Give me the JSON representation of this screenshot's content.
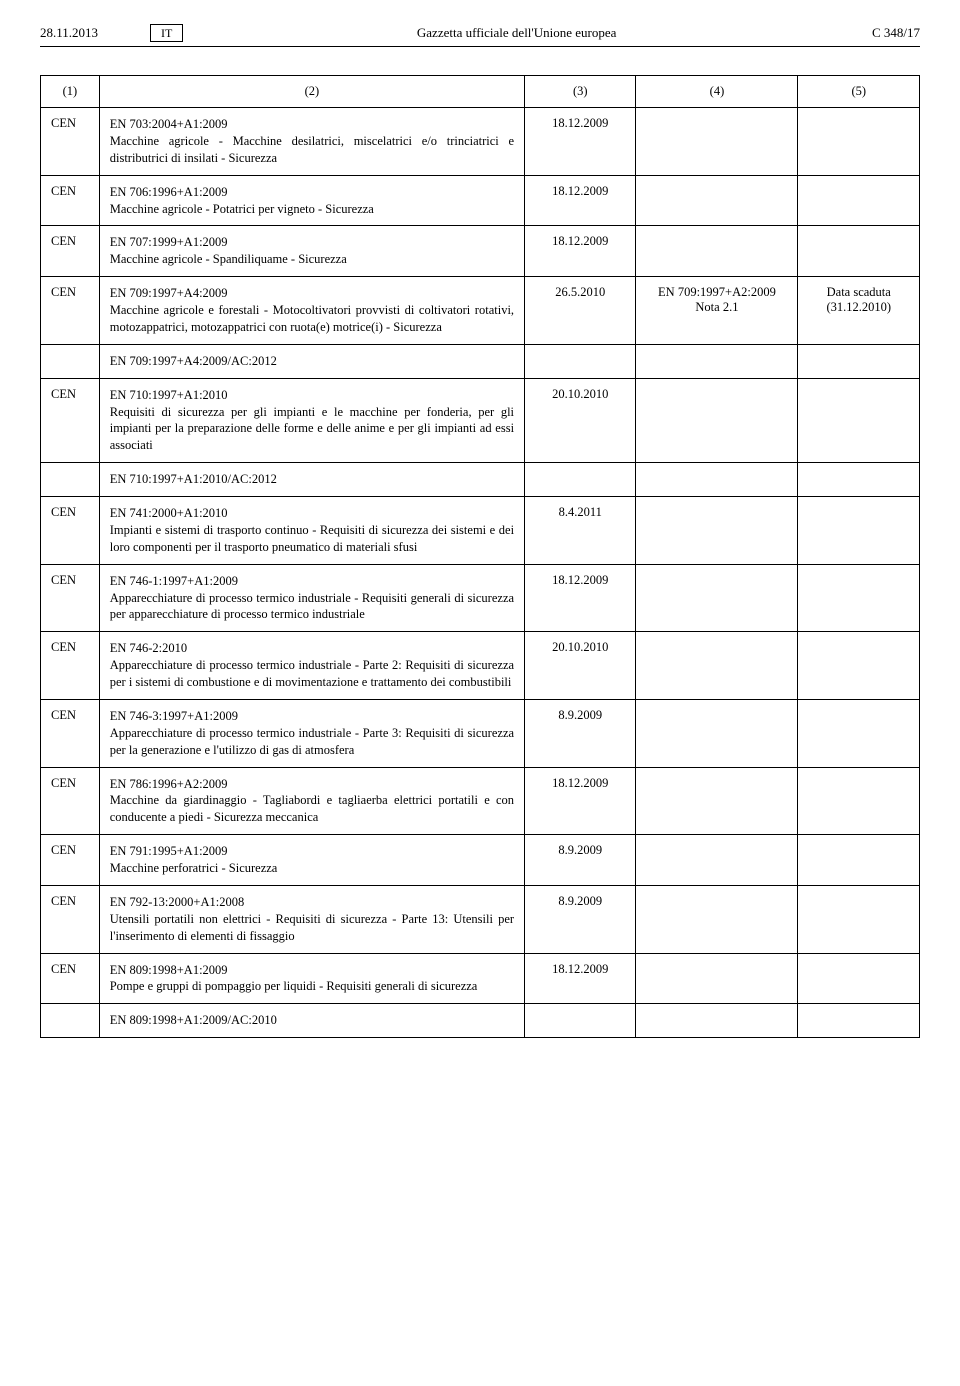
{
  "header": {
    "date": "28.11.2013",
    "lang": "IT",
    "title": "Gazzetta ufficiale dell'Unione europea",
    "page": "C 348/17"
  },
  "columns": [
    "(1)",
    "(2)",
    "(3)",
    "(4)",
    "(5)"
  ],
  "rows": [
    {
      "org": "CEN",
      "std": "EN 703:2004+A1:2009",
      "desc": "Macchine agricole - Macchine desilatrici, miscelatrici e/o trinciatrici e distributrici di insilati - Sicurezza",
      "c3": "18.12.2009",
      "c4": "",
      "c5": ""
    },
    {
      "org": "CEN",
      "std": "EN 706:1996+A1:2009",
      "desc": "Macchine agricole - Potatrici per vigneto - Sicurezza",
      "c3": "18.12.2009",
      "c4": "",
      "c5": ""
    },
    {
      "org": "CEN",
      "std": "EN 707:1999+A1:2009",
      "desc": "Macchine agricole - Spandiliquame - Sicurezza",
      "c3": "18.12.2009",
      "c4": "",
      "c5": ""
    },
    {
      "org": "CEN",
      "std": "EN 709:1997+A4:2009",
      "desc": "Macchine agricole e forestali - Motocoltivatori provvisti di coltivatori rotativi, motozappatrici, motozappatrici con ruota(e) motrice(i) - Sicurezza",
      "c3": "26.5.2010",
      "c4": "EN 709:1997+A2:2009\nNota 2.1",
      "c5": "Data scaduta\n(31.12.2010)",
      "sub": {
        "std": "EN 709:1997+A4:2009/AC:2012"
      }
    },
    {
      "org": "CEN",
      "std": "EN 710:1997+A1:2010",
      "desc": "Requisiti di sicurezza per gli impianti e le macchine per fonderia, per gli impianti per la preparazione delle forme e delle anime e per gli impianti ad essi associati",
      "c3": "20.10.2010",
      "c4": "",
      "c5": "",
      "sub": {
        "std": "EN 710:1997+A1:2010/AC:2012"
      }
    },
    {
      "org": "CEN",
      "std": "EN 741:2000+A1:2010",
      "desc": "Impianti e sistemi di trasporto continuo - Requisiti di sicurezza dei sistemi e dei loro componenti per il trasporto pneumatico di materiali sfusi",
      "c3": "8.4.2011",
      "c4": "",
      "c5": ""
    },
    {
      "org": "CEN",
      "std": "EN 746-1:1997+A1:2009",
      "desc": "Apparecchiature di processo termico industriale - Requisiti generali di sicurezza per apparecchiature di processo termico industriale",
      "c3": "18.12.2009",
      "c4": "",
      "c5": ""
    },
    {
      "org": "CEN",
      "std": "EN 746-2:2010",
      "desc": "Apparecchiature di processo termico industriale - Parte 2: Requisiti di sicurezza per i sistemi di combustione e di movimentazione e trattamento dei combustibili",
      "c3": "20.10.2010",
      "c4": "",
      "c5": ""
    },
    {
      "org": "CEN",
      "std": "EN 746-3:1997+A1:2009",
      "desc": "Apparecchiature di processo termico industriale - Parte 3: Requisiti di sicurezza per la generazione e l'utilizzo di gas di atmosfera",
      "c3": "8.9.2009",
      "c4": "",
      "c5": ""
    },
    {
      "org": "CEN",
      "std": "EN 786:1996+A2:2009",
      "desc": "Macchine da giardinaggio - Tagliabordi e tagliaerba elettrici portatili e con conducente a piedi - Sicurezza meccanica",
      "c3": "18.12.2009",
      "c4": "",
      "c5": ""
    },
    {
      "org": "CEN",
      "std": "EN 791:1995+A1:2009",
      "desc": "Macchine perforatrici - Sicurezza",
      "c3": "8.9.2009",
      "c4": "",
      "c5": ""
    },
    {
      "org": "CEN",
      "std": "EN 792-13:2000+A1:2008",
      "desc": "Utensili portatili non elettrici - Requisiti di sicurezza - Parte 13: Utensili per l'inserimento di elementi di fissaggio",
      "c3": "8.9.2009",
      "c4": "",
      "c5": ""
    },
    {
      "org": "CEN",
      "std": "EN 809:1998+A1:2009",
      "desc": "Pompe e gruppi di pompaggio per liquidi - Requisiti generali di sicurezza",
      "c3": "18.12.2009",
      "c4": "",
      "c5": "",
      "sub": {
        "std": "EN 809:1998+A1:2009/AC:2010"
      }
    }
  ]
}
